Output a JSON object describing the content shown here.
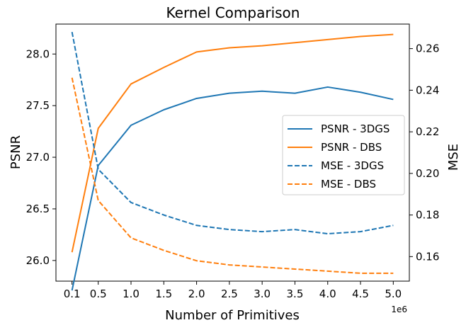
{
  "chart_data": {
    "type": "line",
    "title": "Kernel Comparison",
    "xlabel": "Number of Primitives",
    "ylabel_left": "PSNR",
    "ylabel_right": "MSE",
    "x_offset_label": "1e6",
    "x": [
      0.1,
      0.5,
      1.0,
      1.5,
      2.0,
      2.5,
      3.0,
      3.5,
      4.0,
      4.5,
      5.0
    ],
    "x_ticks": [
      0.1,
      0.5,
      1.0,
      1.5,
      2.0,
      2.5,
      3.0,
      3.5,
      4.0,
      4.5,
      5.0
    ],
    "x_tick_labels": [
      "0.1",
      "0.5",
      "1.0",
      "1.5",
      "2.0",
      "2.5",
      "3.0",
      "3.5",
      "4.0",
      "4.5",
      "5.0"
    ],
    "xlim": [
      -0.145,
      5.245
    ],
    "ylim_left": [
      25.8,
      28.29
    ],
    "yticks_left": [
      26.0,
      26.5,
      27.0,
      27.5,
      28.0
    ],
    "ytick_labels_left": [
      "26.0",
      "26.5",
      "27.0",
      "27.5",
      "28.0"
    ],
    "ylim_right": [
      0.1482,
      0.2718
    ],
    "yticks_right": [
      0.16,
      0.18,
      0.2,
      0.22,
      0.24,
      0.26
    ],
    "ytick_labels_right": [
      "0.16",
      "0.18",
      "0.20",
      "0.22",
      "0.24",
      "0.26"
    ],
    "series": [
      {
        "name": "PSNR - 3DGS",
        "axis": "left",
        "color": "#1f77b4",
        "style": "solid",
        "values": [
          25.71,
          26.92,
          27.31,
          27.46,
          27.57,
          27.62,
          27.64,
          27.62,
          27.68,
          27.63,
          27.56
        ]
      },
      {
        "name": "PSNR - DBS",
        "axis": "left",
        "color": "#ff7f0e",
        "style": "solid",
        "values": [
          26.08,
          27.28,
          27.71,
          27.87,
          28.02,
          28.06,
          28.08,
          28.11,
          28.14,
          28.17,
          28.19
        ]
      },
      {
        "name": "MSE - 3DGS",
        "axis": "right",
        "color": "#1f77b4",
        "style": "dashed",
        "values": [
          0.268,
          0.202,
          0.186,
          0.18,
          0.175,
          0.173,
          0.172,
          0.173,
          0.171,
          0.172,
          0.175
        ]
      },
      {
        "name": "MSE - DBS",
        "axis": "right",
        "color": "#ff7f0e",
        "style": "dashed",
        "values": [
          0.246,
          0.187,
          0.169,
          0.163,
          0.158,
          0.156,
          0.155,
          0.154,
          0.153,
          0.152,
          0.152
        ]
      }
    ],
    "legend_position": "center-right",
    "grid": false
  }
}
